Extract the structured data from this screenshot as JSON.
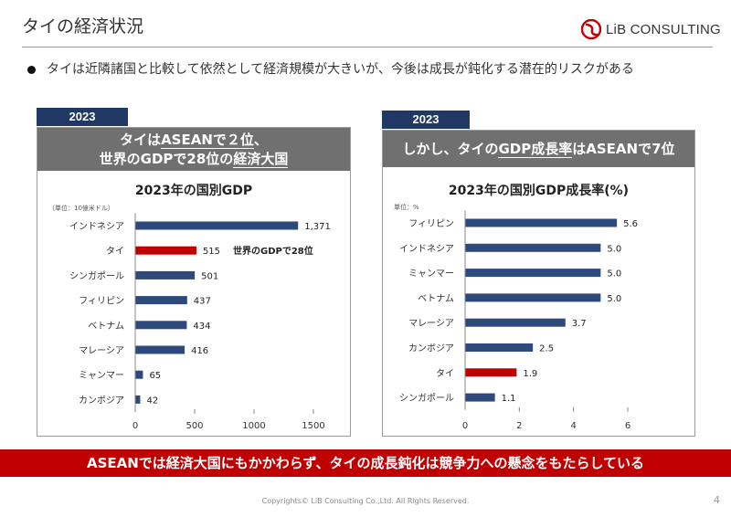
{
  "header": {
    "title": "タイの経済状況",
    "logo_text": "LiB CONSULTING"
  },
  "bullet": {
    "text": "タイは近隣諸国と比較して依然として経済規模が大きいが、今後は成長が鈍化する潜在的リスクがある"
  },
  "colors": {
    "navy": "#1f3864",
    "bar_blue": "#2e4a7d",
    "highlight_red": "#c00000",
    "gray_header": "#707070"
  },
  "left_panel": {
    "year": "2023",
    "headline_line1_a": "タイは",
    "headline_line1_u": "ASEANで２位",
    "headline_line1_b": "、",
    "headline_line2_a": "世界のGDPで28位の",
    "headline_line2_u": "経済大国",
    "annotation": "世界のGDPで28位"
  },
  "right_panel": {
    "year": "2023",
    "headline_a": "しかし、タイの",
    "headline_u": "GDP成長率",
    "headline_b": "はASEANで7位"
  },
  "chart_data": [
    {
      "type": "bar",
      "orientation": "horizontal",
      "title": "2023年の国別GDP",
      "unit_label": "（単位：10億米ドル）",
      "categories": [
        "インドネシア",
        "タイ",
        "シンガポール",
        "フィリピン",
        "ベトナム",
        "マレーシア",
        "ミャンマー",
        "カンボジア"
      ],
      "values": [
        1371,
        515,
        501,
        437,
        434,
        416,
        65,
        42
      ],
      "value_labels": [
        "1,371",
        "515",
        "501",
        "437",
        "434",
        "416",
        "65",
        "42"
      ],
      "highlight": "タイ",
      "xlim": [
        0,
        1500
      ],
      "xticks": [
        0,
        500,
        1000,
        1500
      ],
      "xtick_labels": [
        "0",
        "500",
        "1000",
        "1500"
      ]
    },
    {
      "type": "bar",
      "orientation": "horizontal",
      "title": "2023年の国別GDP成長率(%)",
      "unit_label": "単位：%",
      "categories": [
        "フィリピン",
        "インドネシア",
        "ミャンマー",
        "ベトナム",
        "マレーシア",
        "カンボジア",
        "タイ",
        "シンガポール"
      ],
      "values": [
        5.6,
        5.0,
        5.0,
        5.0,
        3.7,
        2.5,
        1.9,
        1.1
      ],
      "value_labels": [
        "5.6",
        "5.0",
        "5.0",
        "5.0",
        "3.7",
        "2.5",
        "1.9",
        "1.1"
      ],
      "highlight": "タイ",
      "xlim": [
        0,
        6
      ],
      "xticks": [
        0,
        2,
        4,
        6
      ],
      "xtick_labels": [
        "0",
        "2",
        "4",
        "6"
      ]
    }
  ],
  "banner": {
    "text": "ASEANでは経済大国にもかかわらず、タイの成長鈍化は競争力への懸念をもたらしている"
  },
  "footer": {
    "copyright": "Copyrights© LiB Consulting Co.,Ltd.  All Rights Reserved.",
    "page": "4"
  }
}
